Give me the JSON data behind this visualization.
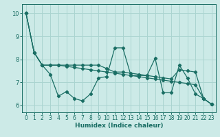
{
  "xlabel": "Humidex (Indice chaleur)",
  "background_color": "#cceae7",
  "grid_color": "#aad4d0",
  "line_color": "#1a6e64",
  "xlim": [
    -0.5,
    23.5
  ],
  "ylim": [
    5.7,
    10.4
  ],
  "yticks": [
    6,
    7,
    8,
    9,
    10
  ],
  "xticks": [
    0,
    1,
    2,
    3,
    4,
    5,
    6,
    7,
    8,
    9,
    10,
    11,
    12,
    13,
    14,
    15,
    16,
    17,
    18,
    19,
    20,
    21,
    22,
    23
  ],
  "series1": [
    10.0,
    8.3,
    7.75,
    7.35,
    6.4,
    6.6,
    6.3,
    6.2,
    6.5,
    7.2,
    7.25,
    8.5,
    8.5,
    7.3,
    7.3,
    7.3,
    8.05,
    6.55,
    6.55,
    7.75,
    7.2,
    6.5,
    6.3,
    6.05
  ],
  "series2": [
    10.0,
    8.3,
    7.75,
    7.75,
    7.75,
    7.75,
    7.75,
    7.75,
    7.75,
    7.75,
    7.6,
    7.45,
    7.45,
    7.4,
    7.35,
    7.3,
    7.25,
    7.2,
    7.15,
    7.55,
    7.5,
    7.45,
    6.3,
    6.05
  ],
  "series3": [
    10.0,
    8.3,
    7.75,
    7.75,
    7.75,
    7.7,
    7.65,
    7.6,
    7.55,
    7.5,
    7.45,
    7.4,
    7.35,
    7.3,
    7.25,
    7.2,
    7.15,
    7.1,
    7.05,
    7.0,
    6.95,
    6.9,
    6.3,
    6.05
  ]
}
